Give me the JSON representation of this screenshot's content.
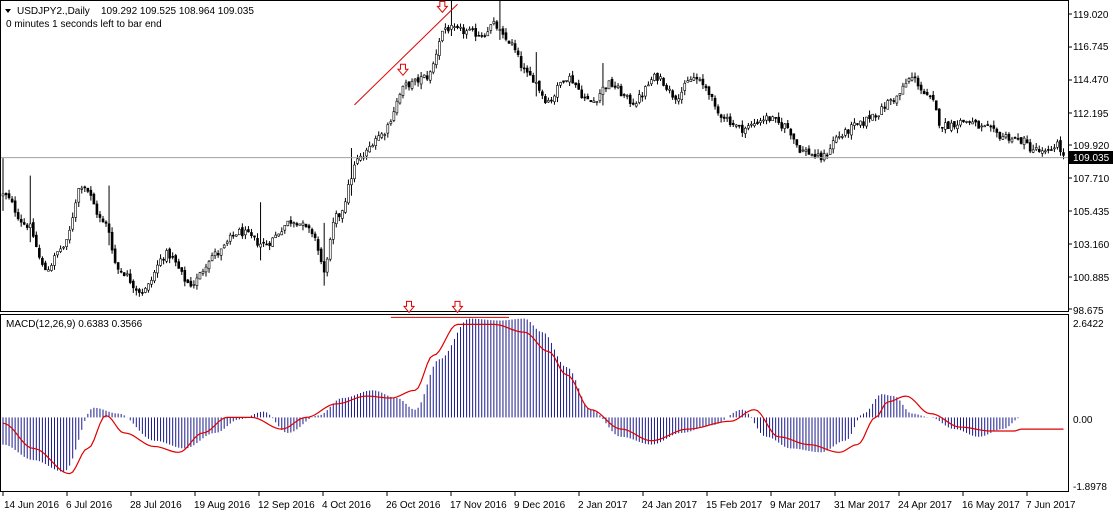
{
  "chart_data": [
    {
      "type": "candlestick",
      "symbol_header": "USDJPY2.,Daily",
      "ohlc_header": "109.292 109.525 108.964 109.035",
      "timer_text": "0 minutes 1 seconds left to bar end",
      "current_price": "109.035",
      "y_ticks": [
        "119.020",
        "116.745",
        "114.470",
        "112.195",
        "109.920",
        "107.710",
        "105.435",
        "103.160",
        "100.885",
        "98.675"
      ],
      "ylim": [
        98.675,
        119.55
      ],
      "x_ticks": [
        "14 Jun 2016",
        "6 Jul 2016",
        "28 Jul 2016",
        "19 Aug 2016",
        "12 Sep 2016",
        "4 Oct 2016",
        "26 Oct 2016",
        "17 Nov 2016",
        "9 Dec 2016",
        "2 Jan 2017",
        "24 Jan 2017",
        "15 Feb 2017",
        "9 Mar 2017",
        "31 Mar 2017",
        "24 Apr 2017",
        "16 May 2017",
        "7 Jun 2017"
      ],
      "close_anchors": [
        [
          0,
          106.5
        ],
        [
          8,
          104.5
        ],
        [
          14,
          101.5
        ],
        [
          20,
          103.0
        ],
        [
          26,
          107.2
        ],
        [
          34,
          104.5
        ],
        [
          38,
          101.5
        ],
        [
          46,
          100.0
        ],
        [
          54,
          102.5
        ],
        [
          62,
          100.5
        ],
        [
          70,
          102.5
        ],
        [
          78,
          104.0
        ],
        [
          86,
          103.2
        ],
        [
          96,
          104.8
        ],
        [
          102,
          104.0
        ],
        [
          106,
          101.5
        ],
        [
          110,
          105.0
        ],
        [
          118,
          109.0
        ],
        [
          124,
          110.5
        ],
        [
          134,
          114.0
        ],
        [
          140,
          114.5
        ],
        [
          146,
          117.8
        ],
        [
          150,
          117.6
        ],
        [
          158,
          117.4
        ],
        [
          162,
          118.0
        ],
        [
          166,
          117.0
        ],
        [
          174,
          114.5
        ],
        [
          180,
          112.9
        ],
        [
          186,
          114.5
        ],
        [
          194,
          112.8
        ],
        [
          200,
          114.0
        ],
        [
          208,
          112.8
        ],
        [
          216,
          114.5
        ],
        [
          222,
          113.2
        ],
        [
          228,
          114.4
        ],
        [
          232,
          113.8
        ],
        [
          236,
          112.0
        ],
        [
          244,
          111.0
        ],
        [
          252,
          111.7
        ],
        [
          258,
          111.2
        ],
        [
          264,
          109.5
        ],
        [
          270,
          109.0
        ],
        [
          276,
          110.5
        ],
        [
          282,
          111.2
        ],
        [
          288,
          112.0
        ],
        [
          294,
          113.0
        ],
        [
          300,
          114.4
        ],
        [
          306,
          113.0
        ],
        [
          310,
          111.2
        ],
        [
          318,
          111.5
        ],
        [
          324,
          111.0
        ],
        [
          330,
          110.5
        ],
        [
          336,
          110.2
        ],
        [
          340,
          109.6
        ],
        [
          344,
          109.3
        ],
        [
          348,
          110.0
        ],
        [
          350,
          109.035
        ]
      ],
      "extra_ranges": [
        [
          0,
          2.2
        ],
        [
          9,
          3.0
        ],
        [
          35,
          2.5
        ],
        [
          85,
          2.5
        ],
        [
          106,
          2.5
        ],
        [
          115,
          2.0
        ],
        [
          148,
          1.5
        ],
        [
          164,
          2.0
        ],
        [
          176,
          2.0
        ],
        [
          198,
          1.6
        ]
      ],
      "annotations": {
        "trend_line_prices": [
          112.6,
          119.4
        ],
        "price_arrows": [
          {
            "bar": 132,
            "price": 114.6
          },
          {
            "bar": 145,
            "price": 118.85
          }
        ],
        "indicator_line_values": [
          2.58,
          2.58
        ],
        "indicator_arrows": [
          {
            "bar": 134
          },
          {
            "bar": 150
          }
        ],
        "line_color": "#e00000",
        "arrow_color": "#e00000"
      },
      "colors": {
        "bull": "#ffffff",
        "bear": "#000000",
        "wick": "#000000",
        "price_line": "#a0a0a0",
        "grid": "#000000"
      }
    },
    {
      "type": "bar",
      "indicator_label": "MACD(12,26,9) 0.6383 0.3566",
      "y_ticks": [
        "2.6422",
        "0.00",
        "-1.8978"
      ],
      "ylim": [
        -1.8978,
        2.6422
      ],
      "macd_anchors": [
        [
          0,
          -0.7
        ],
        [
          10,
          -1.1
        ],
        [
          20,
          -1.4
        ],
        [
          30,
          0.25
        ],
        [
          38,
          0.1
        ],
        [
          50,
          -0.6
        ],
        [
          60,
          -0.8
        ],
        [
          70,
          -0.4
        ],
        [
          78,
          -0.05
        ],
        [
          86,
          0.15
        ],
        [
          94,
          -0.4
        ],
        [
          104,
          0.05
        ],
        [
          112,
          0.5
        ],
        [
          122,
          0.7
        ],
        [
          130,
          0.5
        ],
        [
          136,
          0.2
        ],
        [
          144,
          1.5
        ],
        [
          154,
          2.55
        ],
        [
          164,
          2.5
        ],
        [
          172,
          2.55
        ],
        [
          178,
          2.2
        ],
        [
          186,
          1.3
        ],
        [
          194,
          0.2
        ],
        [
          204,
          -0.5
        ],
        [
          214,
          -0.7
        ],
        [
          224,
          -0.4
        ],
        [
          234,
          -0.2
        ],
        [
          244,
          0.2
        ],
        [
          252,
          -0.5
        ],
        [
          260,
          -0.8
        ],
        [
          270,
          -0.9
        ],
        [
          278,
          -0.6
        ],
        [
          284,
          0.1
        ],
        [
          290,
          0.6
        ],
        [
          294,
          0.55
        ],
        [
          300,
          0.1
        ],
        [
          306,
          0.0
        ],
        [
          314,
          -0.3
        ],
        [
          322,
          -0.5
        ],
        [
          330,
          -0.3
        ],
        [
          336,
          0.0
        ]
      ],
      "signal_anchors": [
        [
          0,
          -0.15
        ],
        [
          10,
          -0.8
        ],
        [
          22,
          -1.45
        ],
        [
          28,
          -0.8
        ],
        [
          34,
          0.05
        ],
        [
          40,
          -0.4
        ],
        [
          50,
          -0.75
        ],
        [
          58,
          -0.9
        ],
        [
          66,
          -0.4
        ],
        [
          74,
          0.0
        ],
        [
          82,
          0.0
        ],
        [
          92,
          -0.3
        ],
        [
          100,
          0.0
        ],
        [
          110,
          0.35
        ],
        [
          120,
          0.55
        ],
        [
          128,
          0.5
        ],
        [
          136,
          0.7
        ],
        [
          142,
          1.6
        ],
        [
          150,
          2.4
        ],
        [
          162,
          2.4
        ],
        [
          172,
          2.2
        ],
        [
          180,
          1.7
        ],
        [
          186,
          1.1
        ],
        [
          194,
          0.2
        ],
        [
          204,
          -0.3
        ],
        [
          214,
          -0.6
        ],
        [
          226,
          -0.3
        ],
        [
          240,
          -0.1
        ],
        [
          248,
          0.2
        ],
        [
          256,
          -0.5
        ],
        [
          266,
          -0.7
        ],
        [
          276,
          -0.9
        ],
        [
          282,
          -0.7
        ],
        [
          288,
          0.0
        ],
        [
          292,
          0.4
        ],
        [
          298,
          0.55
        ],
        [
          306,
          0.1
        ],
        [
          316,
          -0.25
        ],
        [
          326,
          -0.35
        ],
        [
          334,
          -0.35
        ],
        [
          336,
          -0.3
        ]
      ],
      "colors": {
        "hist": "#1a1a8c",
        "signal": "#e00000"
      }
    }
  ]
}
